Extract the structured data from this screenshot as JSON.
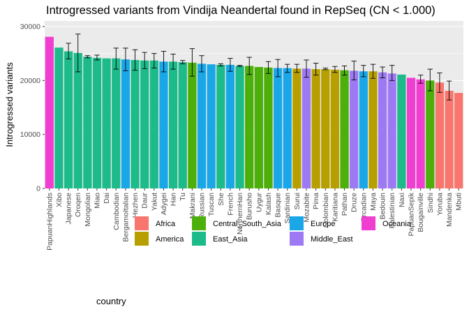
{
  "chart_data": {
    "type": "bar",
    "title": "Introgressed variants from Vindija Neandertal found in RepSeq (CN < 1.000)",
    "xlabel": "",
    "ylabel": "Introgressed variants",
    "ylim": [
      0,
      30000
    ],
    "yticks": [
      0,
      10000,
      20000,
      30000
    ],
    "grid": true,
    "legend": {
      "title": "country",
      "position": "bottom",
      "entries": [
        {
          "name": "Africa",
          "color": "#F8766D"
        },
        {
          "name": "America",
          "color": "#B79F00"
        },
        {
          "name": "Central_South_Asia",
          "color": "#4DAF0A"
        },
        {
          "name": "East_Asia",
          "color": "#1DBA8A"
        },
        {
          "name": "Europe",
          "color": "#1AA7E8"
        },
        {
          "name": "Middle_East",
          "color": "#9D7AF4"
        },
        {
          "name": "Oceania",
          "color": "#F03FD0"
        }
      ]
    },
    "bars": [
      {
        "category": "PapuanHighlands",
        "group": "Oceania",
        "value": 28100,
        "error": null
      },
      {
        "category": "Xibo",
        "group": "East_Asia",
        "value": 26100,
        "error": null
      },
      {
        "category": "Japanese",
        "group": "East_Asia",
        "value": 25400,
        "error": [
          24000,
          26900
        ]
      },
      {
        "category": "Oroqen",
        "group": "East_Asia",
        "value": 25100,
        "error": [
          21600,
          28600
        ]
      },
      {
        "category": "Mongolian",
        "group": "East_Asia",
        "value": 24400,
        "error": [
          24200,
          24600
        ]
      },
      {
        "category": "Miao",
        "group": "East_Asia",
        "value": 24200,
        "error": [
          23800,
          24700
        ]
      },
      {
        "category": "Dai",
        "group": "East_Asia",
        "value": 24100,
        "error": null
      },
      {
        "category": "Cambodian",
        "group": "East_Asia",
        "value": 24100,
        "error": [
          22100,
          26000
        ]
      },
      {
        "category": "BergamoItalian",
        "group": "Europe",
        "value": 23900,
        "error": [
          21800,
          26000
        ]
      },
      {
        "category": "Hezhen",
        "group": "East_Asia",
        "value": 23800,
        "error": [
          21900,
          25700
        ]
      },
      {
        "category": "Daur",
        "group": "East_Asia",
        "value": 23700,
        "error": [
          22200,
          25200
        ]
      },
      {
        "category": "Yakut",
        "group": "East_Asia",
        "value": 23700,
        "error": [
          22300,
          25000
        ]
      },
      {
        "category": "Adygei",
        "group": "Europe",
        "value": 23500,
        "error": [
          21600,
          25400
        ]
      },
      {
        "category": "Han",
        "group": "East_Asia",
        "value": 23500,
        "error": [
          22100,
          24900
        ]
      },
      {
        "category": "Tu",
        "group": "East_Asia",
        "value": 23400,
        "error": [
          23100,
          23700
        ]
      },
      {
        "category": "Makrani",
        "group": "Central_South_Asia",
        "value": 23300,
        "error": [
          20800,
          25900
        ]
      },
      {
        "category": "Russian",
        "group": "Europe",
        "value": 23100,
        "error": [
          21600,
          24600
        ]
      },
      {
        "category": "Tuscan",
        "group": "Europe",
        "value": 23000,
        "error": null
      },
      {
        "category": "She",
        "group": "East_Asia",
        "value": 22900,
        "error": [
          22700,
          23100
        ]
      },
      {
        "category": "French",
        "group": "Europe",
        "value": 22900,
        "error": [
          21700,
          24100
        ]
      },
      {
        "category": "NorthernHan",
        "group": "East_Asia",
        "value": 22700,
        "error": [
          22600,
          22800
        ]
      },
      {
        "category": "Burusho",
        "group": "Central_South_Asia",
        "value": 22700,
        "error": [
          21100,
          24300
        ]
      },
      {
        "category": "Uygur",
        "group": "Central_South_Asia",
        "value": 22500,
        "error": null
      },
      {
        "category": "Kalash",
        "group": "Central_South_Asia",
        "value": 22400,
        "error": [
          21300,
          23500
        ]
      },
      {
        "category": "Basque",
        "group": "Europe",
        "value": 22300,
        "error": [
          20700,
          23900
        ]
      },
      {
        "category": "Sardinian",
        "group": "Europe",
        "value": 22300,
        "error": [
          21500,
          23000
        ]
      },
      {
        "category": "Surui",
        "group": "America",
        "value": 22200,
        "error": [
          21500,
          23000
        ]
      },
      {
        "category": "Mozabite",
        "group": "Middle_East",
        "value": 22200,
        "error": [
          20600,
          23800
        ]
      },
      {
        "category": "Pima",
        "group": "America",
        "value": 22100,
        "error": [
          21000,
          23200
        ]
      },
      {
        "category": "Colombian",
        "group": "America",
        "value": 22100,
        "error": [
          22000,
          22300
        ]
      },
      {
        "category": "Karitiana",
        "group": "America",
        "value": 22000,
        "error": [
          21500,
          22600
        ]
      },
      {
        "category": "Pathan",
        "group": "Central_South_Asia",
        "value": 21900,
        "error": [
          21000,
          22700
        ]
      },
      {
        "category": "Druze",
        "group": "Middle_East",
        "value": 21800,
        "error": [
          20100,
          23600
        ]
      },
      {
        "category": "Orcadian",
        "group": "Europe",
        "value": 21700,
        "error": [
          20700,
          22800
        ]
      },
      {
        "category": "Maya",
        "group": "America",
        "value": 21700,
        "error": [
          20400,
          23000
        ]
      },
      {
        "category": "Bedouin",
        "group": "Middle_East",
        "value": 21500,
        "error": [
          20500,
          22500
        ]
      },
      {
        "category": "Palestinian",
        "group": "Middle_East",
        "value": 21300,
        "error": [
          20000,
          22800
        ]
      },
      {
        "category": "Naxi",
        "group": "East_Asia",
        "value": 21100,
        "error": null
      },
      {
        "category": "PapuanSepik",
        "group": "Oceania",
        "value": 20500,
        "error": null
      },
      {
        "category": "Bougainville",
        "group": "Oceania",
        "value": 20200,
        "error": [
          19500,
          21000
        ]
      },
      {
        "category": "Sindhi",
        "group": "Central_South_Asia",
        "value": 20000,
        "error": [
          18100,
          22100
        ]
      },
      {
        "category": "Yoruba",
        "group": "Africa",
        "value": 19600,
        "error": [
          17800,
          21400
        ]
      },
      {
        "category": "Mandenka",
        "group": "Africa",
        "value": 18100,
        "error": [
          16400,
          19900
        ]
      },
      {
        "category": "Mbuti",
        "group": "Africa",
        "value": 17700,
        "error": null
      }
    ]
  }
}
